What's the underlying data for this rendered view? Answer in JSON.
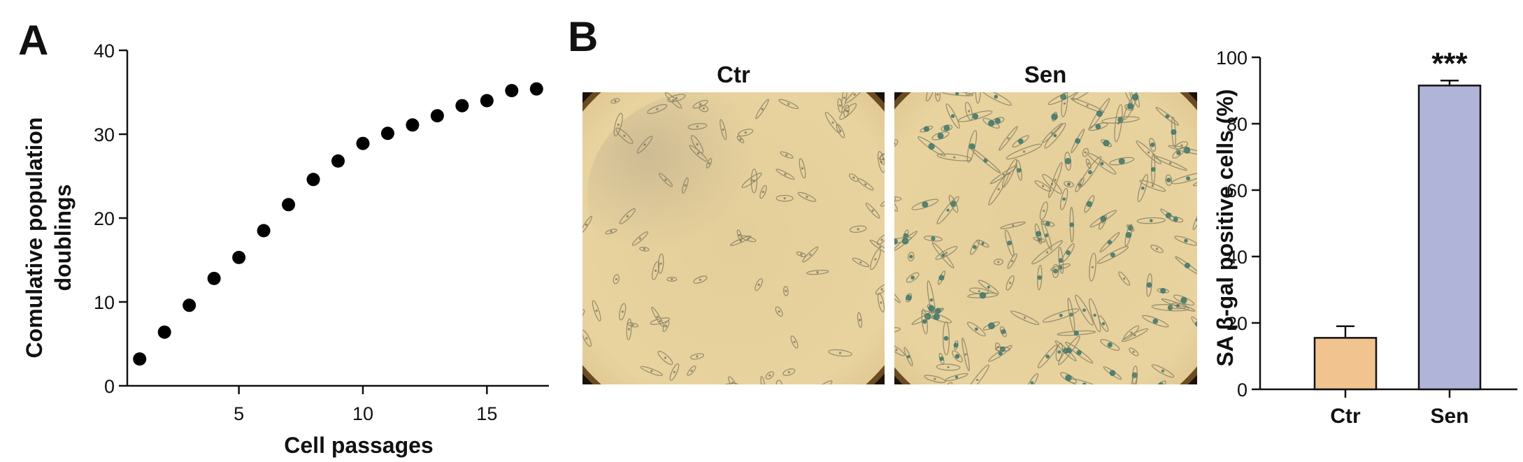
{
  "panels": {
    "a_letter": "A",
    "b_letter": "B"
  },
  "chart_data": [
    {
      "type": "scatter",
      "panel": "A",
      "title": "",
      "xlabel": "Cell passages",
      "ylabel_line1": "Comulative population",
      "ylabel_line2": "doublings",
      "xlim": [
        0.5,
        17.5
      ],
      "ylim": [
        0,
        40
      ],
      "xticks": [
        5,
        10,
        15
      ],
      "xtick_labels": [
        "5",
        "10",
        "15"
      ],
      "yticks": [
        0,
        10,
        20,
        30,
        40
      ],
      "ytick_labels": [
        "0",
        "10",
        "20",
        "30",
        "40"
      ],
      "grid": false,
      "marker_color": "#000000",
      "series": [
        {
          "x": [
            1,
            2,
            3,
            4,
            5,
            6,
            7,
            8,
            9,
            10,
            11,
            12,
            13,
            14,
            15,
            16,
            17
          ],
          "y": [
            3.2,
            6.4,
            9.6,
            12.8,
            15.3,
            18.5,
            21.6,
            24.6,
            26.8,
            28.9,
            30.1,
            31.1,
            32.2,
            33.4,
            34.0,
            35.2,
            35.4
          ]
        }
      ]
    },
    {
      "type": "image-pair",
      "panel": "B",
      "images": [
        {
          "title": "Ctr",
          "description": "microscopy-ctr",
          "stain": "low"
        },
        {
          "title": "Sen",
          "description": "microscopy-sen",
          "stain": "high"
        }
      ]
    },
    {
      "type": "bar",
      "panel": "B",
      "title": "",
      "xlabel": "",
      "ylabel": "SA β-gal positive cells (%)",
      "categories": [
        "Ctr",
        "Sen"
      ],
      "values": [
        15.5,
        91.5
      ],
      "errors": [
        3.5,
        1.5
      ],
      "colors": [
        "#F1C38E",
        "#B1B4D9"
      ],
      "significance": [
        "",
        "***"
      ],
      "ylim": [
        0,
        100
      ],
      "yticks": [
        0,
        20,
        40,
        60,
        80,
        100
      ],
      "ytick_labels": [
        "0",
        "20",
        "40",
        "60",
        "80",
        "100"
      ],
      "grid": false
    }
  ]
}
